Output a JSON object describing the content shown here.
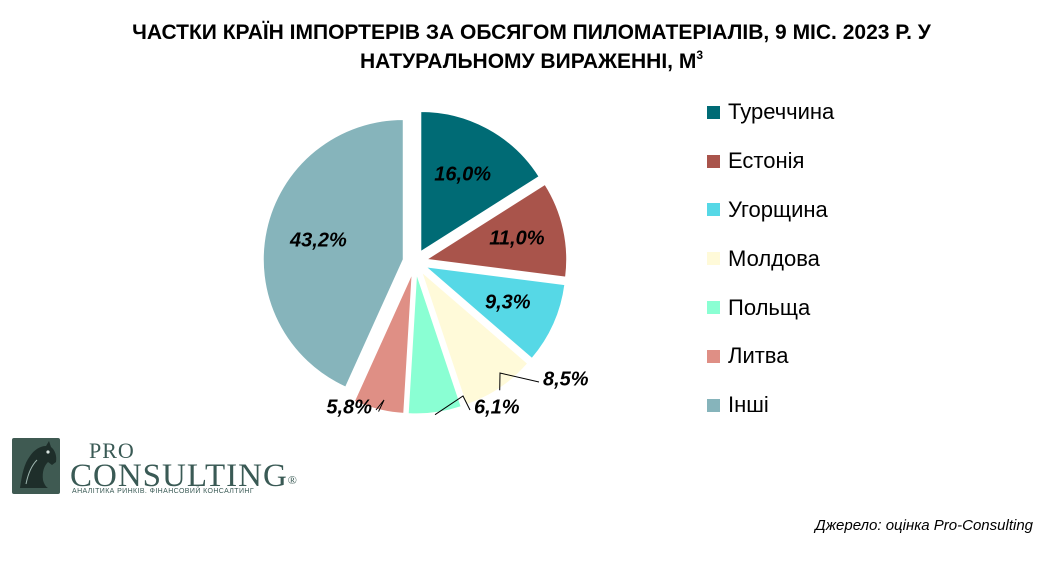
{
  "title": {
    "line1": "ЧАСТКИ КРАЇН ІМПОРТЕРІВ ЗА ОБСЯГОМ ПИЛОМАТЕРІАЛІВ, 9 МІС. 2023 Р. У",
    "line2": "НАТУРАЛЬНОМУ ВИРАЖЕННІ,  М",
    "unit_superscript": "3"
  },
  "chart_data": {
    "type": "pie",
    "title": "ЧАСТКИ КРАЇН ІМПОРТЕРІВ ЗА ОБСЯГОМ ПИЛОМАТЕРІАЛІВ, 9 МІС. 2023 Р. У НАТУРАЛЬНОМУ ВИРАЖЕННІ, М3",
    "exploded": true,
    "legend_position": "right",
    "slices": [
      {
        "label": "Туреччина",
        "value": 16.0,
        "display": "16,0%",
        "color": "#006b75"
      },
      {
        "label": "Естонія",
        "value": 11.0,
        "display": "11,0%",
        "color": "#a9544b"
      },
      {
        "label": "Угорщина",
        "value": 9.3,
        "display": "9,3%",
        "color": "#56d8e6"
      },
      {
        "label": "Молдова",
        "value": 8.5,
        "display": "8,5%",
        "color": "#fffad9"
      },
      {
        "label": "Польща",
        "value": 6.1,
        "display": "6,1%",
        "color": "#8affd3"
      },
      {
        "label": "Литва",
        "value": 5.8,
        "display": "5,8%",
        "color": "#df8f85"
      },
      {
        "label": "Інші",
        "value": 43.2,
        "display": "43,2%",
        "color": "#86b4bb"
      }
    ]
  },
  "logo": {
    "pro": "PRO",
    "consulting": "CONSULTING",
    "registered": "®",
    "tagline": "АНАЛІТИКА РИНКІВ. ФІНАНСОВИЙ КОНСАЛТИНГ",
    "icon": "horse-head-icon"
  },
  "source": "Джерело: оцінка Pro-Consulting"
}
